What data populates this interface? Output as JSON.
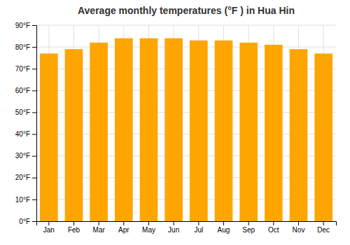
{
  "chart_data": {
    "type": "bar",
    "title": "Average monthly temperatures (°F ) in Hua Hin",
    "categories": [
      "Jan",
      "Feb",
      "Mar",
      "Apr",
      "May",
      "Jun",
      "Jul",
      "Aug",
      "Sep",
      "Oct",
      "Nov",
      "Dec"
    ],
    "values": [
      77,
      79,
      82,
      84,
      84,
      84,
      83,
      83,
      82,
      81,
      79,
      77
    ],
    "color": "#FFA500",
    "ylim": [
      0,
      90
    ],
    "yticks": [
      {
        "value": 0,
        "label": "0°F"
      },
      {
        "value": 10,
        "label": "10°F"
      },
      {
        "value": 20,
        "label": "20°F"
      },
      {
        "value": 30,
        "label": "30°F"
      },
      {
        "value": 40,
        "label": "40°F"
      },
      {
        "value": 50,
        "label": "50°F"
      },
      {
        "value": 60,
        "label": "60°F"
      },
      {
        "value": 70,
        "label": "70°F"
      },
      {
        "value": 80,
        "label": "80°F"
      },
      {
        "value": 90,
        "label": "90°F"
      }
    ],
    "grid": true
  }
}
